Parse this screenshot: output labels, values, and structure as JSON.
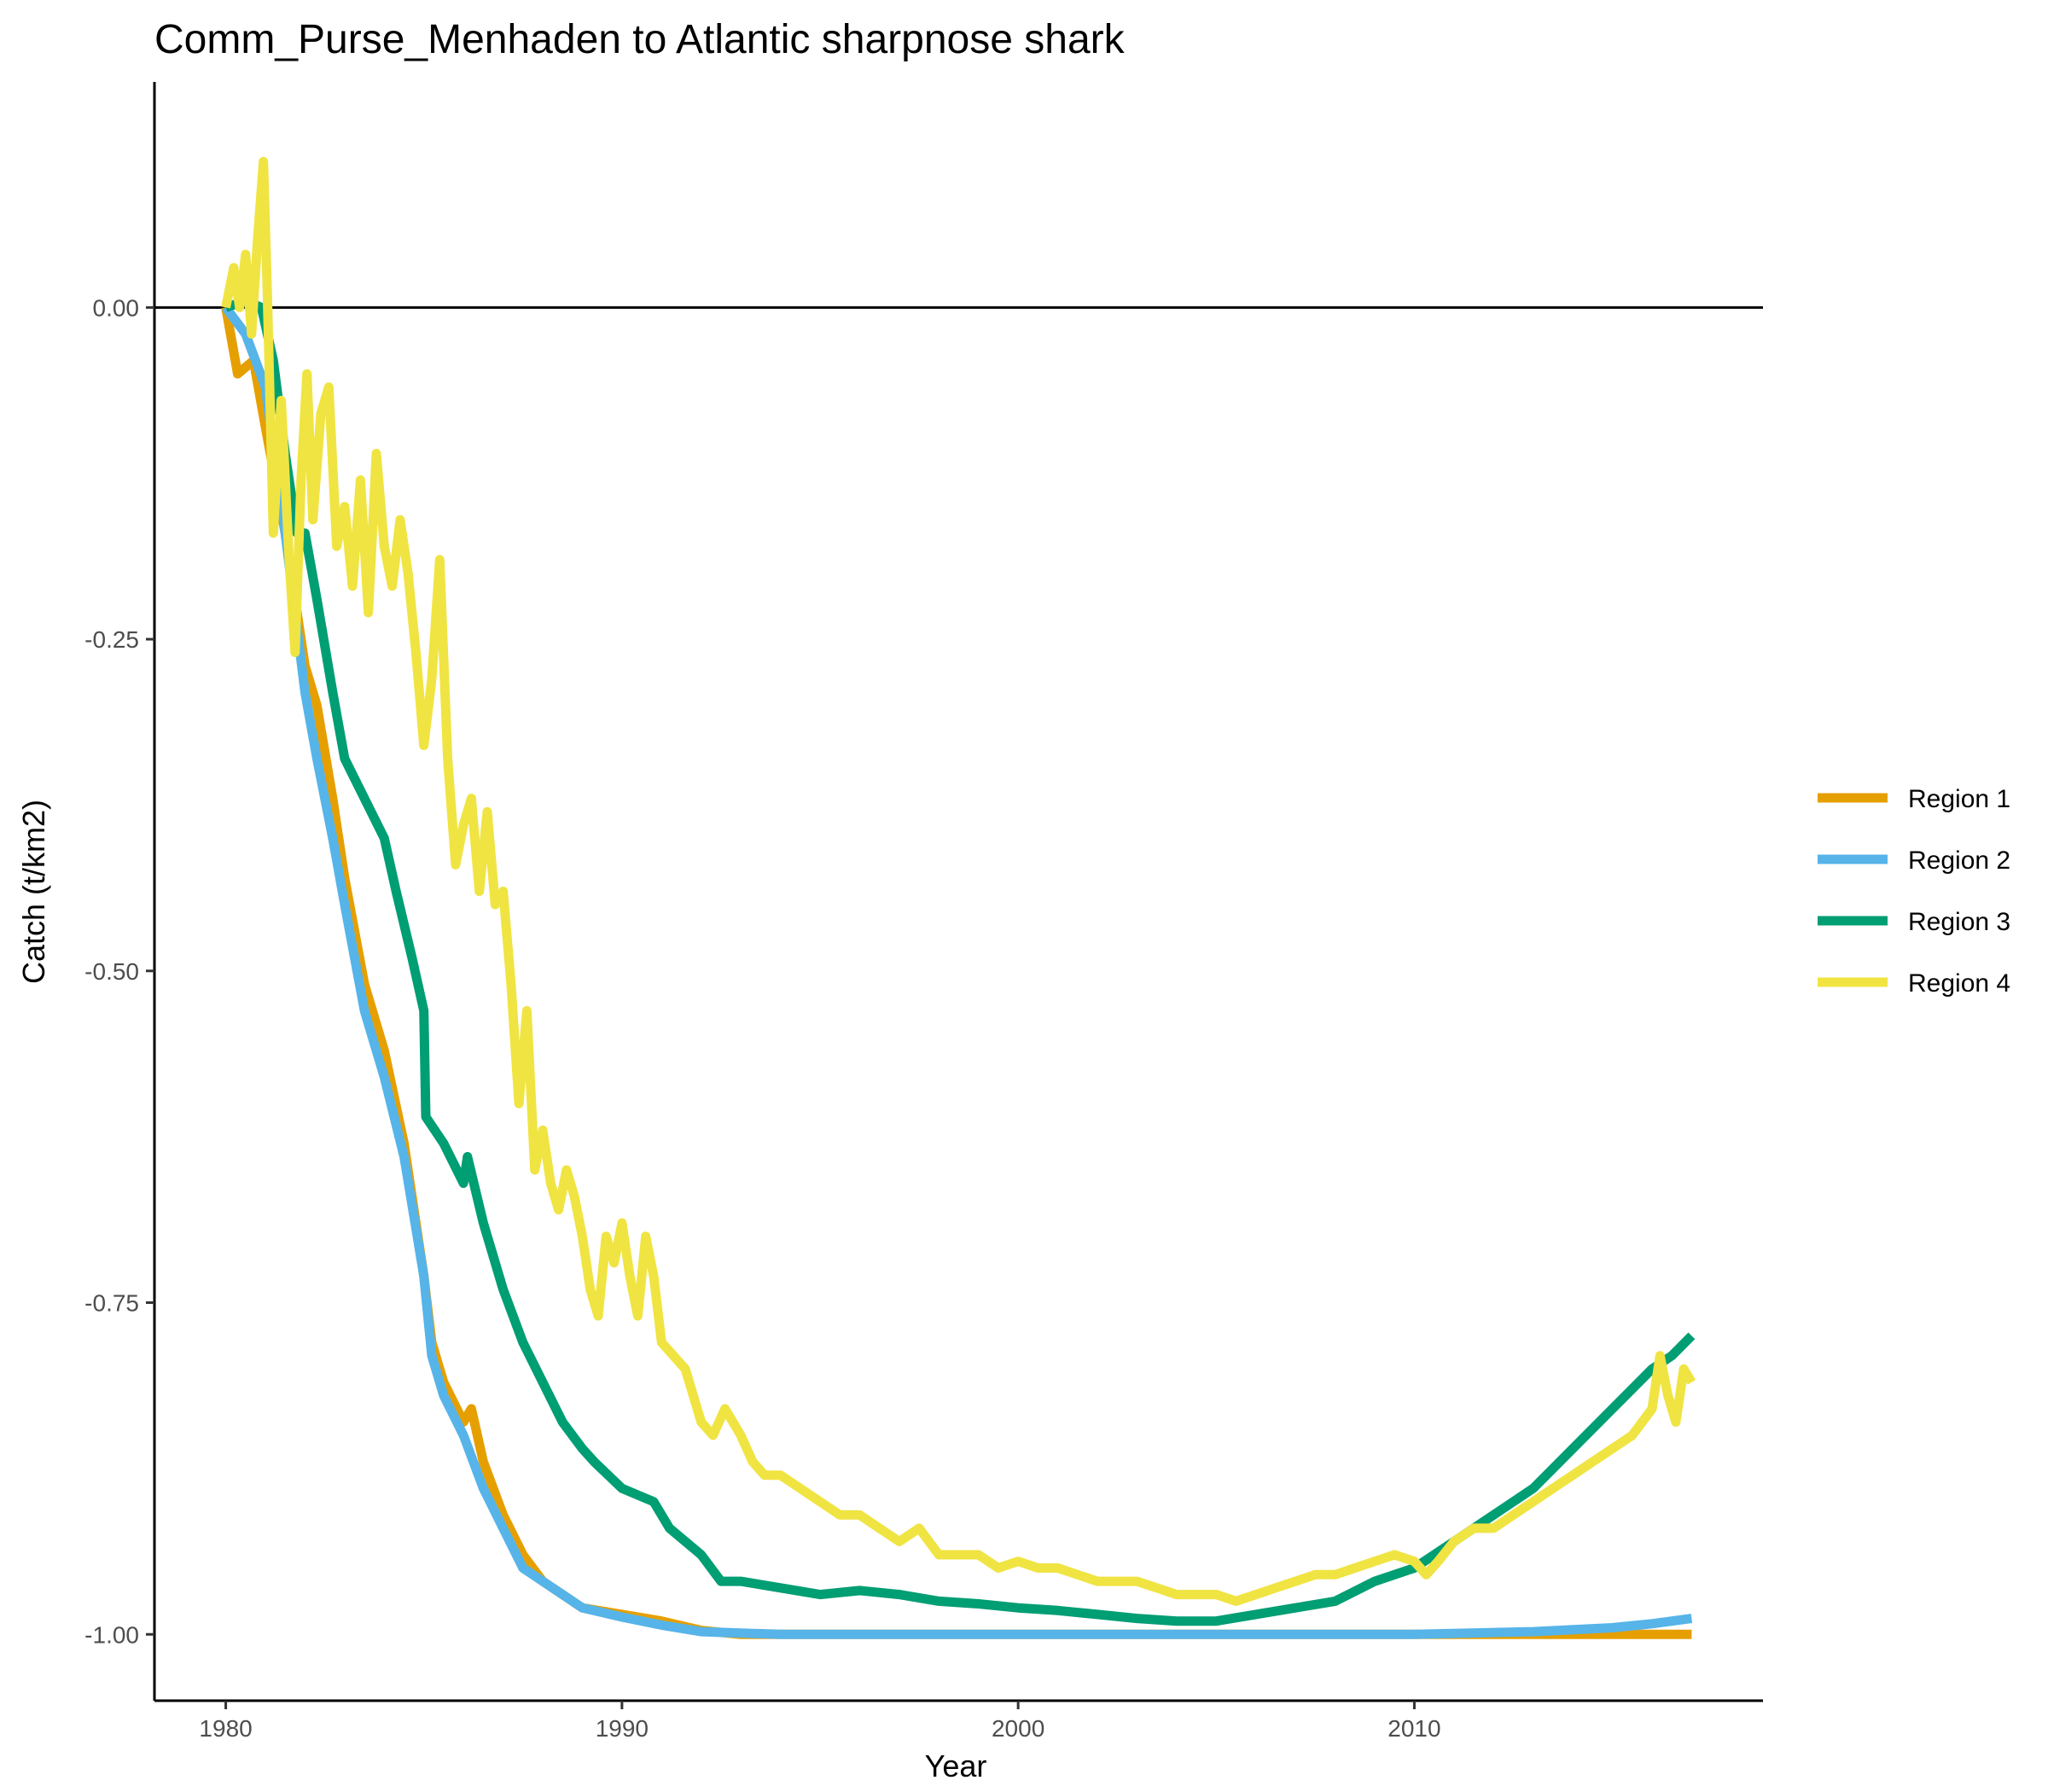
{
  "chart_data": {
    "type": "line",
    "title": "Comm_Purse_Menhaden to Atlantic sharpnose shark",
    "xlabel": "Year",
    "ylabel": "Catch (t/km2)",
    "xlim": [
      1978.2,
      2018.8
    ],
    "ylim": [
      -1.05,
      0.17
    ],
    "x_ticks": [
      1980,
      1990,
      2000,
      2010
    ],
    "x_tick_labels": [
      "1980",
      "1990",
      "2000",
      "2010"
    ],
    "y_ticks": [
      0,
      -0.25,
      -0.5,
      -0.75,
      -1
    ],
    "y_tick_labels": [
      "0.00",
      "-0.25",
      "-0.50",
      "-0.75",
      "-1.00"
    ],
    "reference_line_y": 0,
    "grid": false,
    "legend_position": "right",
    "series": [
      {
        "name": "Region 1",
        "color": "#E69F00",
        "points": [
          [
            1980.0,
            0
          ],
          [
            1980.3,
            -0.05
          ],
          [
            1980.7,
            -0.04
          ],
          [
            1981.0,
            -0.09
          ],
          [
            1981.5,
            -0.17
          ],
          [
            1982.0,
            -0.27
          ],
          [
            1982.3,
            -0.3
          ],
          [
            1982.7,
            -0.37
          ],
          [
            1983.0,
            -0.43
          ],
          [
            1983.5,
            -0.51
          ],
          [
            1984.0,
            -0.56
          ],
          [
            1984.5,
            -0.63
          ],
          [
            1985.0,
            -0.73
          ],
          [
            1985.2,
            -0.78
          ],
          [
            1985.5,
            -0.81
          ],
          [
            1986.0,
            -0.84
          ],
          [
            1986.2,
            -0.83
          ],
          [
            1986.5,
            -0.87
          ],
          [
            1987.0,
            -0.91
          ],
          [
            1987.5,
            -0.94
          ],
          [
            1988.0,
            -0.96
          ],
          [
            1988.5,
            -0.97
          ],
          [
            1989.0,
            -0.98
          ],
          [
            1990.0,
            -0.985
          ],
          [
            1991.0,
            -0.99
          ],
          [
            1992.0,
            -0.997
          ],
          [
            1993.0,
            -1.0
          ],
          [
            2017.0,
            -1.0
          ]
        ]
      },
      {
        "name": "Region 2",
        "color": "#56B4E9",
        "points": [
          [
            1980.0,
            0
          ],
          [
            1980.5,
            -0.02
          ],
          [
            1981.0,
            -0.06
          ],
          [
            1981.5,
            -0.17
          ],
          [
            1982.0,
            -0.29
          ],
          [
            1982.3,
            -0.34
          ],
          [
            1982.7,
            -0.4
          ],
          [
            1983.0,
            -0.45
          ],
          [
            1983.5,
            -0.53
          ],
          [
            1984.0,
            -0.58
          ],
          [
            1984.5,
            -0.64
          ],
          [
            1985.0,
            -0.73
          ],
          [
            1985.2,
            -0.79
          ],
          [
            1985.5,
            -0.82
          ],
          [
            1986.0,
            -0.85
          ],
          [
            1986.5,
            -0.89
          ],
          [
            1987.0,
            -0.92
          ],
          [
            1987.5,
            -0.95
          ],
          [
            1988.0,
            -0.96
          ],
          [
            1988.5,
            -0.97
          ],
          [
            1989.0,
            -0.98
          ],
          [
            1990.0,
            -0.987
          ],
          [
            1991.0,
            -0.993
          ],
          [
            1992.0,
            -0.998
          ],
          [
            1994.0,
            -1.0
          ],
          [
            2010.0,
            -1.0
          ],
          [
            2013.0,
            -0.998
          ],
          [
            2015.0,
            -0.995
          ],
          [
            2016.0,
            -0.992
          ],
          [
            2017.0,
            -0.988
          ]
        ]
      },
      {
        "name": "Region 3",
        "color": "#009E73",
        "points": [
          [
            1980.0,
            0
          ],
          [
            1980.5,
            0.005
          ],
          [
            1980.9,
            0.0
          ],
          [
            1981.2,
            -0.04
          ],
          [
            1981.5,
            -0.11
          ],
          [
            1981.8,
            -0.17
          ],
          [
            1982.0,
            -0.17
          ],
          [
            1982.3,
            -0.22
          ],
          [
            1982.7,
            -0.29
          ],
          [
            1983.0,
            -0.34
          ],
          [
            1983.5,
            -0.37
          ],
          [
            1984.0,
            -0.4
          ],
          [
            1984.3,
            -0.44
          ],
          [
            1984.7,
            -0.49
          ],
          [
            1985.0,
            -0.53
          ],
          [
            1985.05,
            -0.61
          ],
          [
            1985.5,
            -0.63
          ],
          [
            1986.0,
            -0.66
          ],
          [
            1986.1,
            -0.64
          ],
          [
            1986.5,
            -0.69
          ],
          [
            1987.0,
            -0.74
          ],
          [
            1987.5,
            -0.78
          ],
          [
            1988.0,
            -0.81
          ],
          [
            1988.5,
            -0.84
          ],
          [
            1989.0,
            -0.86
          ],
          [
            1989.3,
            -0.87
          ],
          [
            1990.0,
            -0.89
          ],
          [
            1990.8,
            -0.9
          ],
          [
            1991.2,
            -0.92
          ],
          [
            1992.0,
            -0.94
          ],
          [
            1992.5,
            -0.96
          ],
          [
            1993.0,
            -0.96
          ],
          [
            1994.0,
            -0.965
          ],
          [
            1995.0,
            -0.97
          ],
          [
            1996.0,
            -0.967
          ],
          [
            1997.0,
            -0.97
          ],
          [
            1998.0,
            -0.975
          ],
          [
            1999.0,
            -0.977
          ],
          [
            2000.0,
            -0.98
          ],
          [
            2001.0,
            -0.982
          ],
          [
            2002.0,
            -0.985
          ],
          [
            2003.0,
            -0.988
          ],
          [
            2004.0,
            -0.99
          ],
          [
            2005.0,
            -0.99
          ],
          [
            2006.0,
            -0.985
          ],
          [
            2007.0,
            -0.98
          ],
          [
            2008.0,
            -0.975
          ],
          [
            2009.0,
            -0.96
          ],
          [
            2010.0,
            -0.95
          ],
          [
            2011.0,
            -0.93
          ],
          [
            2012.0,
            -0.91
          ],
          [
            2013.0,
            -0.89
          ],
          [
            2014.0,
            -0.86
          ],
          [
            2015.0,
            -0.83
          ],
          [
            2016.0,
            -0.8
          ],
          [
            2016.5,
            -0.79
          ],
          [
            2017.0,
            -0.775
          ]
        ]
      },
      {
        "name": "Region 4",
        "color": "#F0E442",
        "points": [
          [
            1980.0,
            0
          ],
          [
            1980.2,
            0.03
          ],
          [
            1980.35,
            0.0
          ],
          [
            1980.5,
            0.04
          ],
          [
            1980.65,
            -0.02
          ],
          [
            1980.8,
            0.05
          ],
          [
            1980.95,
            0.11
          ],
          [
            1981.05,
            0.01
          ],
          [
            1981.2,
            -0.17
          ],
          [
            1981.4,
            -0.07
          ],
          [
            1981.6,
            -0.19
          ],
          [
            1981.75,
            -0.26
          ],
          [
            1981.9,
            -0.13
          ],
          [
            1982.05,
            -0.05
          ],
          [
            1982.2,
            -0.16
          ],
          [
            1982.4,
            -0.08
          ],
          [
            1982.6,
            -0.06
          ],
          [
            1982.8,
            -0.18
          ],
          [
            1983.0,
            -0.15
          ],
          [
            1983.2,
            -0.21
          ],
          [
            1983.4,
            -0.13
          ],
          [
            1983.6,
            -0.23
          ],
          [
            1983.8,
            -0.11
          ],
          [
            1984.0,
            -0.18
          ],
          [
            1984.2,
            -0.21
          ],
          [
            1984.4,
            -0.16
          ],
          [
            1984.6,
            -0.2
          ],
          [
            1984.8,
            -0.26
          ],
          [
            1985.0,
            -0.33
          ],
          [
            1985.2,
            -0.28
          ],
          [
            1985.4,
            -0.19
          ],
          [
            1985.6,
            -0.34
          ],
          [
            1985.8,
            -0.42
          ],
          [
            1986.0,
            -0.39
          ],
          [
            1986.2,
            -0.37
          ],
          [
            1986.4,
            -0.44
          ],
          [
            1986.6,
            -0.38
          ],
          [
            1986.8,
            -0.45
          ],
          [
            1987.0,
            -0.44
          ],
          [
            1987.2,
            -0.51
          ],
          [
            1987.4,
            -0.6
          ],
          [
            1987.6,
            -0.53
          ],
          [
            1987.8,
            -0.65
          ],
          [
            1988.0,
            -0.62
          ],
          [
            1988.2,
            -0.66
          ],
          [
            1988.4,
            -0.68
          ],
          [
            1988.6,
            -0.65
          ],
          [
            1988.8,
            -0.67
          ],
          [
            1989.0,
            -0.7
          ],
          [
            1989.2,
            -0.74
          ],
          [
            1989.4,
            -0.76
          ],
          [
            1989.6,
            -0.7
          ],
          [
            1989.8,
            -0.72
          ],
          [
            1990.0,
            -0.69
          ],
          [
            1990.2,
            -0.73
          ],
          [
            1990.4,
            -0.76
          ],
          [
            1990.6,
            -0.7
          ],
          [
            1990.8,
            -0.73
          ],
          [
            1991.0,
            -0.78
          ],
          [
            1991.3,
            -0.79
          ],
          [
            1991.6,
            -0.8
          ],
          [
            1992.0,
            -0.84
          ],
          [
            1992.3,
            -0.85
          ],
          [
            1992.6,
            -0.83
          ],
          [
            1993.0,
            -0.85
          ],
          [
            1993.3,
            -0.87
          ],
          [
            1993.6,
            -0.88
          ],
          [
            1994.0,
            -0.88
          ],
          [
            1994.5,
            -0.89
          ],
          [
            1995.0,
            -0.9
          ],
          [
            1995.5,
            -0.91
          ],
          [
            1996.0,
            -0.91
          ],
          [
            1996.5,
            -0.92
          ],
          [
            1997.0,
            -0.93
          ],
          [
            1997.5,
            -0.92
          ],
          [
            1998.0,
            -0.94
          ],
          [
            1998.5,
            -0.94
          ],
          [
            1999.0,
            -0.94
          ],
          [
            1999.5,
            -0.95
          ],
          [
            2000.0,
            -0.945
          ],
          [
            2000.5,
            -0.95
          ],
          [
            2001.0,
            -0.95
          ],
          [
            2001.5,
            -0.955
          ],
          [
            2002.0,
            -0.96
          ],
          [
            2002.5,
            -0.96
          ],
          [
            2003.0,
            -0.96
          ],
          [
            2003.5,
            -0.965
          ],
          [
            2004.0,
            -0.97
          ],
          [
            2004.5,
            -0.97
          ],
          [
            2005.0,
            -0.97
          ],
          [
            2005.5,
            -0.975
          ],
          [
            2006.0,
            -0.97
          ],
          [
            2006.5,
            -0.965
          ],
          [
            2007.0,
            -0.96
          ],
          [
            2007.5,
            -0.955
          ],
          [
            2008.0,
            -0.955
          ],
          [
            2008.5,
            -0.95
          ],
          [
            2009.0,
            -0.945
          ],
          [
            2009.5,
            -0.94
          ],
          [
            2010.0,
            -0.945
          ],
          [
            2010.3,
            -0.955
          ],
          [
            2010.6,
            -0.945
          ],
          [
            2011.0,
            -0.93
          ],
          [
            2011.5,
            -0.92
          ],
          [
            2012.0,
            -0.92
          ],
          [
            2012.5,
            -0.91
          ],
          [
            2013.0,
            -0.9
          ],
          [
            2013.5,
            -0.89
          ],
          [
            2014.0,
            -0.88
          ],
          [
            2014.5,
            -0.87
          ],
          [
            2015.0,
            -0.86
          ],
          [
            2015.5,
            -0.85
          ],
          [
            2016.0,
            -0.83
          ],
          [
            2016.2,
            -0.79
          ],
          [
            2016.4,
            -0.82
          ],
          [
            2016.6,
            -0.84
          ],
          [
            2016.8,
            -0.8
          ],
          [
            2017.0,
            -0.81
          ]
        ]
      }
    ]
  }
}
